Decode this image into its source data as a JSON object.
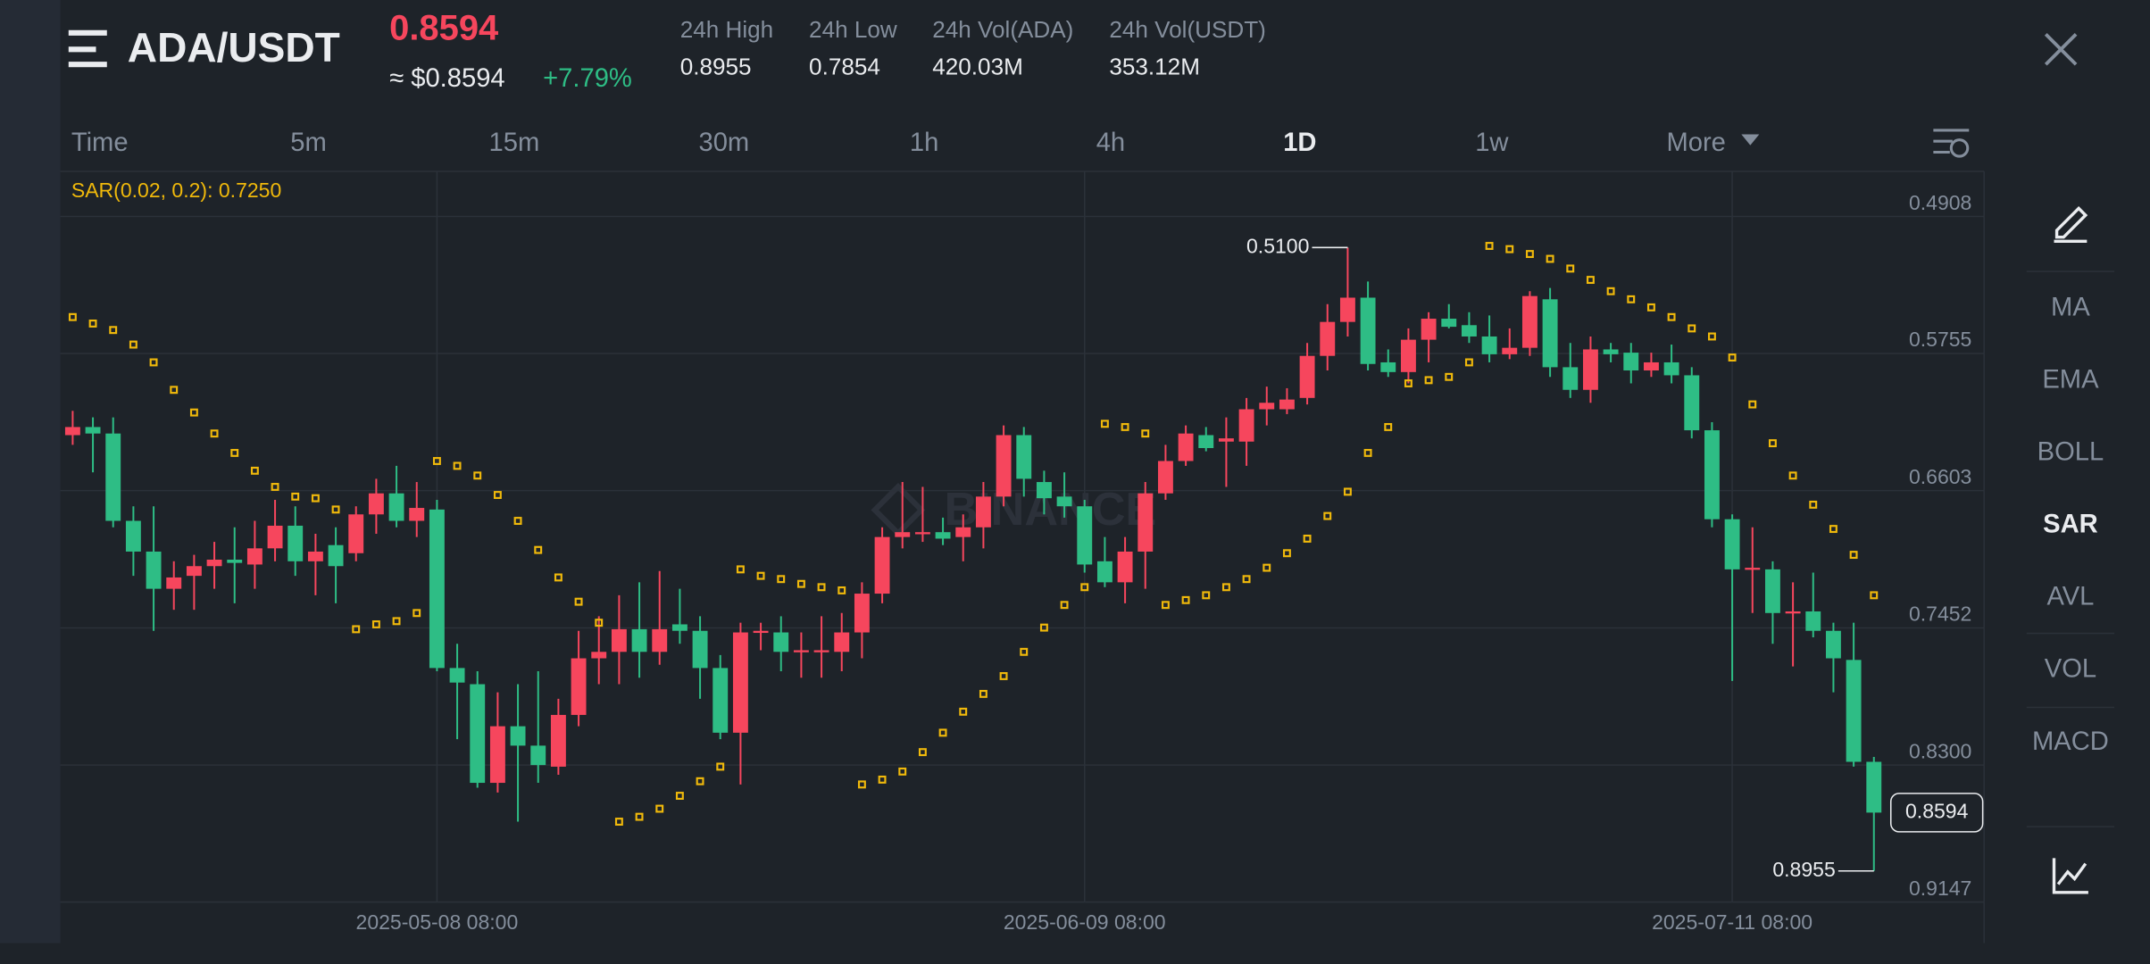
{
  "header": {
    "symbol": "ADA/USDT",
    "price": "0.8594",
    "price_usd": "≈ $0.8594",
    "change": "+7.79%",
    "stats": [
      {
        "label": "24h High",
        "value": "0.8955"
      },
      {
        "label": "24h Low",
        "value": "0.7854"
      },
      {
        "label": "24h Vol(ADA)",
        "value": "420.03M"
      },
      {
        "label": "24h Vol(USDT)",
        "value": "353.12M"
      }
    ]
  },
  "timeframes": {
    "items": [
      "Time",
      "5m",
      "15m",
      "30m",
      "1h",
      "4h",
      "1D",
      "1w",
      "More"
    ],
    "active": "1D"
  },
  "indicators": {
    "items": [
      "MA",
      "EMA",
      "BOLL",
      "SAR",
      "AVL",
      "VOL",
      "MACD"
    ],
    "active": "SAR"
  },
  "chart_data": {
    "type": "candlestick",
    "watermark": "BINANCE",
    "indicator_label": "SAR(0.02, 0.2): 0.7250",
    "up_color": "#2ebd85",
    "down_color": "#f6465d",
    "inverted": true,
    "grid": true,
    "ylim": [
      0.4629,
      0.9147
    ],
    "yticks": [
      0.4908,
      0.5755,
      0.6603,
      0.7452,
      {
        "value": 0.83,
        "label": "0.8300"
      },
      0.9147
    ],
    "categories": [
      null,
      null,
      null,
      null,
      null,
      null,
      null,
      null,
      null,
      null,
      null,
      null,
      null,
      null,
      null,
      null,
      null,
      null,
      "2025-05-08 08:00",
      null,
      null,
      null,
      null,
      null,
      null,
      null,
      null,
      null,
      null,
      null,
      null,
      null,
      null,
      null,
      null,
      null,
      null,
      null,
      null,
      null,
      null,
      null,
      null,
      null,
      null,
      null,
      null,
      null,
      null,
      null,
      "2025-06-09 08:00",
      null,
      null,
      null,
      null,
      null,
      null,
      null,
      null,
      null,
      null,
      null,
      null,
      null,
      null,
      null,
      null,
      null,
      null,
      null,
      null,
      null,
      null,
      null,
      null,
      null,
      null,
      null,
      null,
      null,
      null,
      null,
      "2025-07-11 08:00",
      null,
      null,
      null,
      null,
      null,
      null,
      null
    ],
    "ohlc": [
      [
        0.626,
        0.632,
        0.611,
        0.621
      ],
      [
        0.621,
        0.649,
        0.615,
        0.625
      ],
      [
        0.625,
        0.683,
        0.615,
        0.679
      ],
      [
        0.679,
        0.713,
        0.67,
        0.698
      ],
      [
        0.698,
        0.747,
        0.67,
        0.721
      ],
      [
        0.721,
        0.734,
        0.704,
        0.714
      ],
      [
        0.713,
        0.734,
        0.7,
        0.707
      ],
      [
        0.707,
        0.721,
        0.692,
        0.703
      ],
      [
        0.703,
        0.73,
        0.683,
        0.705
      ],
      [
        0.706,
        0.721,
        0.679,
        0.696
      ],
      [
        0.696,
        0.704,
        0.666,
        0.682
      ],
      [
        0.682,
        0.713,
        0.67,
        0.704
      ],
      [
        0.704,
        0.725,
        0.687,
        0.698
      ],
      [
        0.694,
        0.73,
        0.683,
        0.707
      ],
      [
        0.699,
        0.704,
        0.67,
        0.675
      ],
      [
        0.675,
        0.687,
        0.653,
        0.662
      ],
      [
        0.662,
        0.683,
        0.645,
        0.679
      ],
      [
        0.679,
        0.689,
        0.655,
        0.671
      ],
      [
        0.672,
        0.772,
        0.666,
        0.77
      ],
      [
        0.77,
        0.814,
        0.755,
        0.779
      ],
      [
        0.78,
        0.844,
        0.772,
        0.841
      ],
      [
        0.841,
        0.847,
        0.785,
        0.806
      ],
      [
        0.806,
        0.865,
        0.78,
        0.818
      ],
      [
        0.818,
        0.841,
        0.772,
        0.83
      ],
      [
        0.831,
        0.836,
        0.789,
        0.799
      ],
      [
        0.799,
        0.806,
        0.747,
        0.764
      ],
      [
        0.764,
        0.78,
        0.738,
        0.76
      ],
      [
        0.76,
        0.78,
        0.725,
        0.746
      ],
      [
        0.746,
        0.776,
        0.717,
        0.76
      ],
      [
        0.76,
        0.768,
        0.71,
        0.746
      ],
      [
        0.743,
        0.755,
        0.721,
        0.747
      ],
      [
        0.747,
        0.789,
        0.738,
        0.77
      ],
      [
        0.77,
        0.814,
        0.762,
        0.81
      ],
      [
        0.81,
        0.842,
        0.742,
        0.748
      ],
      [
        0.748,
        0.759,
        0.742,
        0.747
      ],
      [
        0.748,
        0.772,
        0.738,
        0.76
      ],
      [
        0.76,
        0.776,
        0.748,
        0.759
      ],
      [
        0.76,
        0.776,
        0.738,
        0.759
      ],
      [
        0.76,
        0.772,
        0.736,
        0.748
      ],
      [
        0.748,
        0.764,
        0.717,
        0.724
      ],
      [
        0.724,
        0.73,
        0.683,
        0.689
      ],
      [
        0.689,
        0.696,
        0.655,
        0.686
      ],
      [
        0.687,
        0.692,
        0.658,
        0.686
      ],
      [
        0.686,
        0.694,
        0.677,
        0.69
      ],
      [
        0.689,
        0.704,
        0.675,
        0.683
      ],
      [
        0.683,
        0.696,
        0.655,
        0.664
      ],
      [
        0.664,
        0.67,
        0.62,
        0.626
      ],
      [
        0.626,
        0.664,
        0.621,
        0.653
      ],
      [
        0.655,
        0.675,
        0.648,
        0.665
      ],
      [
        0.664,
        0.677,
        0.649,
        0.67
      ],
      [
        0.67,
        0.711,
        0.666,
        0.706
      ],
      [
        0.704,
        0.72,
        0.689,
        0.717
      ],
      [
        0.717,
        0.73,
        0.689,
        0.698
      ],
      [
        0.698,
        0.721,
        0.655,
        0.662
      ],
      [
        0.662,
        0.666,
        0.632,
        0.642
      ],
      [
        0.642,
        0.645,
        0.62,
        0.625
      ],
      [
        0.626,
        0.636,
        0.621,
        0.634
      ],
      [
        0.63,
        0.658,
        0.615,
        0.628
      ],
      [
        0.63,
        0.645,
        0.603,
        0.61
      ],
      [
        0.61,
        0.62,
        0.596,
        0.606
      ],
      [
        0.61,
        0.613,
        0.597,
        0.604
      ],
      [
        0.603,
        0.607,
        0.569,
        0.577
      ],
      [
        0.577,
        0.586,
        0.545,
        0.556
      ],
      [
        0.556,
        0.565,
        0.51,
        0.541
      ],
      [
        0.541,
        0.586,
        0.531,
        0.582
      ],
      [
        0.581,
        0.59,
        0.573,
        0.587
      ],
      [
        0.587,
        0.594,
        0.56,
        0.567
      ],
      [
        0.567,
        0.581,
        0.55,
        0.554
      ],
      [
        0.554,
        0.56,
        0.545,
        0.559
      ],
      [
        0.558,
        0.569,
        0.55,
        0.565
      ],
      [
        0.565,
        0.581,
        0.552,
        0.576
      ],
      [
        0.576,
        0.579,
        0.56,
        0.572
      ],
      [
        0.572,
        0.577,
        0.537,
        0.54
      ],
      [
        0.542,
        0.59,
        0.535,
        0.584
      ],
      [
        0.584,
        0.603,
        0.569,
        0.598
      ],
      [
        0.598,
        0.606,
        0.565,
        0.573
      ],
      [
        0.573,
        0.581,
        0.569,
        0.576
      ],
      [
        0.575,
        0.594,
        0.569,
        0.586
      ],
      [
        0.586,
        0.59,
        0.575,
        0.581
      ],
      [
        0.581,
        0.594,
        0.57,
        0.589
      ],
      [
        0.589,
        0.628,
        0.584,
        0.623
      ],
      [
        0.623,
        0.683,
        0.618,
        0.678
      ],
      [
        0.678,
        0.778,
        0.675,
        0.709
      ],
      [
        0.709,
        0.736,
        0.683,
        0.708
      ],
      [
        0.709,
        0.755,
        0.704,
        0.736
      ],
      [
        0.736,
        0.769,
        0.717,
        0.735
      ],
      [
        0.735,
        0.751,
        0.711,
        0.747
      ],
      [
        0.747,
        0.785,
        0.742,
        0.764
      ],
      [
        0.765,
        0.831,
        0.742,
        0.828
      ],
      [
        0.828,
        0.8955,
        0.825,
        0.8594
      ]
    ],
    "sar": {
      "color": "#f0b90b",
      "values": [
        0.553,
        0.557,
        0.561,
        0.57,
        0.581,
        0.598,
        0.612,
        0.625,
        0.637,
        0.648,
        0.658,
        0.664,
        0.665,
        0.672,
        0.746,
        0.743,
        0.741,
        0.736,
        0.642,
        0.645,
        0.651,
        0.663,
        0.679,
        0.697,
        0.714,
        0.729,
        0.742,
        0.865,
        0.862,
        0.857,
        0.849,
        0.84,
        0.831,
        0.709,
        0.713,
        0.715,
        0.718,
        0.72,
        0.722,
        0.842,
        0.839,
        0.834,
        0.822,
        0.81,
        0.797,
        0.786,
        0.775,
        0.76,
        0.745,
        0.731,
        0.72,
        0.619,
        0.621,
        0.625,
        0.731,
        0.728,
        0.725,
        0.72,
        0.715,
        0.708,
        0.699,
        0.69,
        0.676,
        0.661,
        0.637,
        0.621,
        0.594,
        0.592,
        0.59,
        0.581,
        0.509,
        0.511,
        0.514,
        0.517,
        0.523,
        0.53,
        0.537,
        0.542,
        0.547,
        0.553,
        0.56,
        0.565,
        0.578,
        0.607,
        0.631,
        0.651,
        0.669,
        0.684,
        0.7,
        0.725
      ]
    },
    "min_label": "0.5100",
    "max_label": "0.8955",
    "last_price_label": "0.8594"
  }
}
